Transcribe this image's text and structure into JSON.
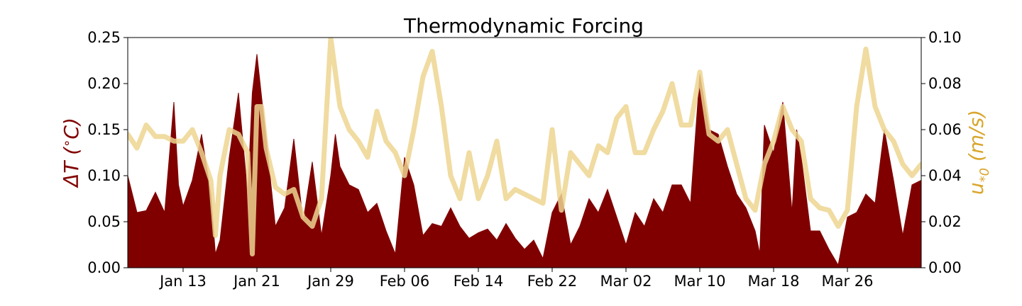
{
  "colors": {
    "delta_t": "#800000",
    "u_star": "#EDD590",
    "u_star_label": "#D9A62E",
    "axis": "#000000"
  },
  "chart_data": {
    "type": "area",
    "title": "Thermodynamic Forcing",
    "x_label": "",
    "x_range": [
      "2019-01-07",
      "2019-04-03"
    ],
    "x_ticks": [
      "Jan 13",
      "Jan 21",
      "Jan 29",
      "Feb 06",
      "Feb 14",
      "Feb 22",
      "Mar 02",
      "Mar 10",
      "Mar 18",
      "Mar 26"
    ],
    "grid": false,
    "left_axis": {
      "label": "ΔT  (°C)",
      "label_math": "ΔT (∘C)",
      "ylim": [
        0,
        0.25
      ],
      "ticks": [
        "0.00",
        "0.05",
        "0.10",
        "0.15",
        "0.20",
        "0.25"
      ]
    },
    "right_axis": {
      "label": "u*0  (m/s)",
      "ylim": [
        0,
        0.1
      ],
      "ticks": [
        "0.00",
        "0.02",
        "0.04",
        "0.06",
        "0.08",
        "0.10"
      ]
    },
    "series": [
      {
        "axis": "left",
        "style": "filled area",
        "points": [
          [
            "Jan 07",
            0.1
          ],
          [
            "Jan 08",
            0.06
          ],
          [
            "Jan 09",
            0.062
          ],
          [
            "Jan 10",
            0.082
          ],
          [
            "Jan 11",
            0.06
          ],
          [
            "Jan 12",
            0.18
          ],
          [
            "Jan 12.5",
            0.09
          ],
          [
            "Jan 13",
            0.067
          ],
          [
            "Jan 14",
            0.095
          ],
          [
            "Jan 15",
            0.145
          ],
          [
            "Jan 16",
            0.08
          ],
          [
            "Jan 16.5",
            0.015
          ],
          [
            "Jan 17",
            0.03
          ],
          [
            "Jan 18",
            0.12
          ],
          [
            "Jan 19",
            0.19
          ],
          [
            "Jan 20",
            0.08
          ],
          [
            "Jan 20.5",
            0.19
          ],
          [
            "Jan 21",
            0.232
          ],
          [
            "Jan 22",
            0.14
          ],
          [
            "Jan 23",
            0.045
          ],
          [
            "Jan 24",
            0.065
          ],
          [
            "Jan 25",
            0.14
          ],
          [
            "Jan 26",
            0.05
          ],
          [
            "Jan 27",
            0.115
          ],
          [
            "Jan 28",
            0.035
          ],
          [
            "Jan 29",
            0.1
          ],
          [
            "Jan 29.5",
            0.145
          ],
          [
            "Jan 30",
            0.11
          ],
          [
            "Jan 31",
            0.09
          ],
          [
            "Feb 01",
            0.085
          ],
          [
            "Feb 02",
            0.06
          ],
          [
            "Feb 03",
            0.07
          ],
          [
            "Feb 04",
            0.04
          ],
          [
            "Feb 05",
            0.015
          ],
          [
            "Feb 06",
            0.12
          ],
          [
            "Feb 07",
            0.09
          ],
          [
            "Feb 08",
            0.035
          ],
          [
            "Feb 09",
            0.048
          ],
          [
            "Feb 10",
            0.045
          ],
          [
            "Feb 11",
            0.065
          ],
          [
            "Feb 12",
            0.045
          ],
          [
            "Feb 13",
            0.032
          ],
          [
            "Feb 14",
            0.038
          ],
          [
            "Feb 15",
            0.042
          ],
          [
            "Feb 16",
            0.03
          ],
          [
            "Feb 17",
            0.048
          ],
          [
            "Feb 18",
            0.032
          ],
          [
            "Feb 19",
            0.02
          ],
          [
            "Feb 20",
            0.03
          ],
          [
            "Feb 21",
            0.01
          ],
          [
            "Feb 22",
            0.06
          ],
          [
            "Feb 23",
            0.08
          ],
          [
            "Feb 24",
            0.025
          ],
          [
            "Feb 25",
            0.045
          ],
          [
            "Feb 26",
            0.075
          ],
          [
            "Feb 27",
            0.06
          ],
          [
            "Feb 28",
            0.085
          ],
          [
            "Mar 01",
            0.055
          ],
          [
            "Mar 02",
            0.025
          ],
          [
            "Mar 03",
            0.06
          ],
          [
            "Mar 04",
            0.045
          ],
          [
            "Mar 05",
            0.075
          ],
          [
            "Mar 06",
            0.06
          ],
          [
            "Mar 07",
            0.09
          ],
          [
            "Mar 08",
            0.09
          ],
          [
            "Mar 09",
            0.07
          ],
          [
            "Mar 10",
            0.21
          ],
          [
            "Mar 11",
            0.15
          ],
          [
            "Mar 12",
            0.145
          ],
          [
            "Mar 13",
            0.11
          ],
          [
            "Mar 14",
            0.08
          ],
          [
            "Mar 15",
            0.065
          ],
          [
            "Mar 16",
            0.04
          ],
          [
            "Mar 16.5",
            0.015
          ],
          [
            "Mar 17",
            0.155
          ],
          [
            "Mar 18",
            0.125
          ],
          [
            "Mar 19",
            0.18
          ],
          [
            "Mar 20",
            0.06
          ],
          [
            "Mar 20.5",
            0.15
          ],
          [
            "Mar 21",
            0.12
          ],
          [
            "Mar 22",
            0.04
          ],
          [
            "Mar 23",
            0.04
          ],
          [
            "Mar 24",
            0.02
          ],
          [
            "Mar 25",
            0.003
          ],
          [
            "Mar 26",
            0.055
          ],
          [
            "Mar 27",
            0.06
          ],
          [
            "Mar 28",
            0.08
          ],
          [
            "Mar 29",
            0.07
          ],
          [
            "Mar 30",
            0.15
          ],
          [
            "Mar 31",
            0.095
          ],
          [
            "Apr 01",
            0.035
          ],
          [
            "Apr 02",
            0.09
          ],
          [
            "Apr 03",
            0.095
          ]
        ]
      },
      {
        "axis": "right",
        "style": "line",
        "points": [
          [
            "Jan 07",
            0.058
          ],
          [
            "Jan 08",
            0.052
          ],
          [
            "Jan 09",
            0.062
          ],
          [
            "Jan 10",
            0.057
          ],
          [
            "Jan 11",
            0.057
          ],
          [
            "Jan 12",
            0.055
          ],
          [
            "Jan 13",
            0.055
          ],
          [
            "Jan 14",
            0.06
          ],
          [
            "Jan 15",
            0.05
          ],
          [
            "Jan 16",
            0.038
          ],
          [
            "Jan 16.5",
            0.014
          ],
          [
            "Jan 17",
            0.04
          ],
          [
            "Jan 18",
            0.06
          ],
          [
            "Jan 19",
            0.058
          ],
          [
            "Jan 20",
            0.05
          ],
          [
            "Jan 20.5",
            0.006
          ],
          [
            "Jan 21",
            0.07
          ],
          [
            "Jan 21.5",
            0.07
          ],
          [
            "Jan 22",
            0.052
          ],
          [
            "Jan 23",
            0.035
          ],
          [
            "Jan 24",
            0.032
          ],
          [
            "Jan 25",
            0.034
          ],
          [
            "Jan 26",
            0.022
          ],
          [
            "Jan 27",
            0.018
          ],
          [
            "Jan 28",
            0.03
          ],
          [
            "Jan 29",
            0.1
          ],
          [
            "Jan 30",
            0.07
          ],
          [
            "Jan 31",
            0.06
          ],
          [
            "Feb 01",
            0.055
          ],
          [
            "Feb 02",
            0.048
          ],
          [
            "Feb 03",
            0.068
          ],
          [
            "Feb 04",
            0.055
          ],
          [
            "Feb 05",
            0.05
          ],
          [
            "Feb 06",
            0.04
          ],
          [
            "Feb 07",
            0.06
          ],
          [
            "Feb 08",
            0.083
          ],
          [
            "Feb 09",
            0.094
          ],
          [
            "Feb 10",
            0.07
          ],
          [
            "Feb 11",
            0.04
          ],
          [
            "Feb 12",
            0.03
          ],
          [
            "Feb 13",
            0.05
          ],
          [
            "Feb 14",
            0.03
          ],
          [
            "Feb 15",
            0.04
          ],
          [
            "Feb 16",
            0.055
          ],
          [
            "Feb 17",
            0.03
          ],
          [
            "Feb 18",
            0.034
          ],
          [
            "Feb 19",
            0.032
          ],
          [
            "Feb 20",
            0.03
          ],
          [
            "Feb 21",
            0.028
          ],
          [
            "Feb 22",
            0.06
          ],
          [
            "Feb 23",
            0.025
          ],
          [
            "Feb 24",
            0.05
          ],
          [
            "Feb 25",
            0.045
          ],
          [
            "Feb 26",
            0.04
          ],
          [
            "Feb 27",
            0.053
          ],
          [
            "Feb 28",
            0.05
          ],
          [
            "Mar 01",
            0.065
          ],
          [
            "Mar 02",
            0.07
          ],
          [
            "Mar 03",
            0.05
          ],
          [
            "Mar 04",
            0.05
          ],
          [
            "Mar 05",
            0.06
          ],
          [
            "Mar 06",
            0.068
          ],
          [
            "Mar 07",
            0.08
          ],
          [
            "Mar 08",
            0.062
          ],
          [
            "Mar 09",
            0.062
          ],
          [
            "Mar 10",
            0.085
          ],
          [
            "Mar 11",
            0.058
          ],
          [
            "Mar 12",
            0.055
          ],
          [
            "Mar 13",
            0.06
          ],
          [
            "Mar 14",
            0.045
          ],
          [
            "Mar 15",
            0.03
          ],
          [
            "Mar 16",
            0.025
          ],
          [
            "Mar 17",
            0.045
          ],
          [
            "Mar 18",
            0.055
          ],
          [
            "Mar 19",
            0.07
          ],
          [
            "Mar 20",
            0.06
          ],
          [
            "Mar 21",
            0.055
          ],
          [
            "Mar 22",
            0.03
          ],
          [
            "Mar 23",
            0.026
          ],
          [
            "Mar 24",
            0.025
          ],
          [
            "Mar 25",
            0.018
          ],
          [
            "Mar 26",
            0.025
          ],
          [
            "Mar 27",
            0.07
          ],
          [
            "Mar 28",
            0.095
          ],
          [
            "Mar 29",
            0.07
          ],
          [
            "Mar 30",
            0.06
          ],
          [
            "Mar 31",
            0.055
          ],
          [
            "Apr 01",
            0.045
          ],
          [
            "Apr 02",
            0.04
          ],
          [
            "Apr 03",
            0.045
          ]
        ]
      }
    ]
  }
}
